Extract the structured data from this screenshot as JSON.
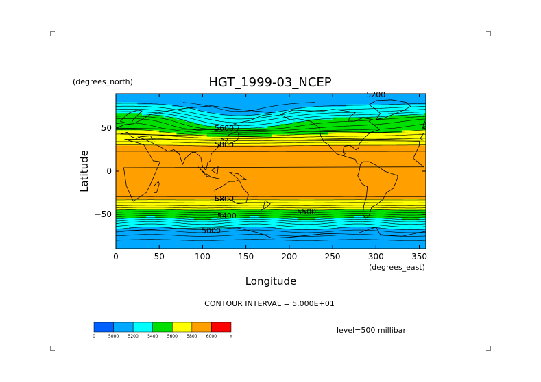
{
  "chart_data": {
    "type": "heatmap",
    "title": "HGT_1999-03_NCEP",
    "xlabel": "Longitude",
    "ylabel": "Latitude",
    "x_unit": "(degrees_east)",
    "y_unit": "(degrees_north)",
    "xlim": [
      0,
      357.5
    ],
    "ylim": [
      -90,
      90
    ],
    "x_ticks": [
      0,
      50,
      100,
      150,
      200,
      250,
      300,
      350
    ],
    "y_ticks": [
      -50,
      0,
      50
    ],
    "x_tick_labels": [
      "0",
      "50",
      "100",
      "150",
      "200",
      "250",
      "300",
      "350"
    ],
    "y_tick_labels": [
      "−50",
      "0",
      "50"
    ],
    "contour_interval_text": "CONTOUR INTERVAL = 5.000E+01",
    "level_text": "level=500 millibar",
    "contour_labels": [
      {
        "text": "5200",
        "lon": 300,
        "lat": 86
      },
      {
        "text": "5600",
        "lon": 125,
        "lat": 47
      },
      {
        "text": "5800",
        "lon": 125,
        "lat": 28
      },
      {
        "text": "5800",
        "lon": 125,
        "lat": -35
      },
      {
        "text": "5400",
        "lon": 128,
        "lat": -55
      },
      {
        "text": "5500",
        "lon": 220,
        "lat": -50
      },
      {
        "text": "5000",
        "lon": 110,
        "lat": -72
      }
    ],
    "latitude_profile": {
      "lat": [
        90,
        80,
        70,
        60,
        50,
        40,
        30,
        20,
        10,
        0,
        -10,
        -20,
        -30,
        -40,
        -50,
        -60,
        -70,
        -80,
        -90
      ],
      "hgt_gpm": [
        5150,
        5150,
        5250,
        5400,
        5500,
        5650,
        5800,
        5870,
        5880,
        5880,
        5880,
        5880,
        5850,
        5700,
        5500,
        5300,
        5150,
        5050,
        5000
      ]
    },
    "colorbar": {
      "levels": [
        0,
        5000,
        5200,
        5400,
        5600,
        5800,
        6000,
        "∞"
      ],
      "tick_labels": [
        "0",
        "5000",
        "5200",
        "5400",
        "5600",
        "5800",
        "6000",
        "∞"
      ],
      "colors": [
        "#0060ff",
        "#00a8ff",
        "#00ffff",
        "#00e000",
        "#ffff00",
        "#ffa000",
        "#ff0000"
      ]
    }
  }
}
